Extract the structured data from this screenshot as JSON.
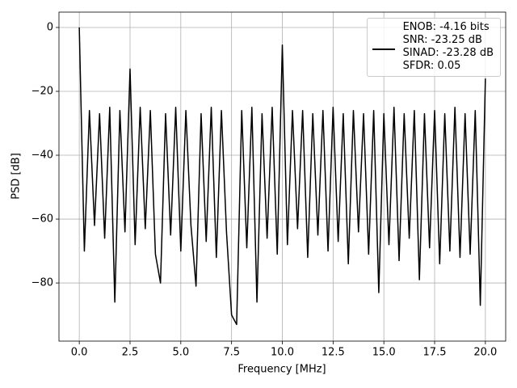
{
  "chart_data": {
    "type": "line",
    "x_label": "Frequency [MHz]",
    "y_label": "PSD [dB]",
    "x": [
      0,
      0.25,
      0.5,
      0.75,
      1,
      1.25,
      1.5,
      1.75,
      2,
      2.25,
      2.5,
      2.75,
      3,
      3.25,
      3.5,
      3.75,
      4,
      4.25,
      4.5,
      4.75,
      5,
      5.25,
      5.5,
      5.75,
      6,
      6.25,
      6.5,
      6.75,
      7,
      7.25,
      7.5,
      7.75,
      8,
      8.25,
      8.5,
      8.75,
      9,
      9.25,
      9.5,
      9.75,
      10,
      10.25,
      10.5,
      10.75,
      11,
      11.25,
      11.5,
      11.75,
      12,
      12.25,
      12.5,
      12.75,
      13,
      13.25,
      13.5,
      13.75,
      14,
      14.25,
      14.5,
      14.75,
      15,
      15.25,
      15.5,
      15.75,
      16,
      16.25,
      16.5,
      16.75,
      17,
      17.25,
      17.5,
      17.75,
      18,
      18.25,
      18.5,
      18.75,
      19,
      19.25,
      19.5,
      19.75,
      20
    ],
    "series": [
      {
        "name": "ENOB: -4.16 bits\nSNR: -23.25 dB\nSINAD: -23.28 dB\nSFDR: 0.05",
        "color": "#000000",
        "values": [
          0,
          -70,
          -26,
          -62,
          -27,
          -66,
          -25,
          -86,
          -26,
          -64,
          -13,
          -68,
          -25,
          -63,
          -26,
          -71,
          -80,
          -27,
          -65,
          -25,
          -70,
          -26,
          -62,
          -81,
          -27,
          -67,
          -25,
          -72,
          -26,
          -64,
          -90,
          -93,
          -26,
          -69,
          -25,
          -86,
          -27,
          -66,
          -25,
          -71,
          -5.5,
          -68,
          -26,
          -63,
          -26,
          -72,
          -27,
          -65,
          -26,
          -70,
          -25,
          -67,
          -27,
          -74,
          -26,
          -64,
          -27,
          -71,
          -26,
          -83,
          -27,
          -68,
          -25,
          -73,
          -27,
          -66,
          -26,
          -79,
          -27,
          -69,
          -26,
          -74,
          -27,
          -70,
          -25,
          -72,
          -27,
          -71,
          -26,
          -87,
          -16
        ]
      }
    ],
    "xlim": [
      -1,
      21
    ],
    "ylim": [
      -98.2,
      4.8
    ],
    "xticks": [
      {
        "value": 0,
        "label": "0.0"
      },
      2.5,
      {
        "value": 5,
        "label": "5.0"
      },
      7.5,
      {
        "value": 10,
        "label": "10.0"
      },
      12.5,
      {
        "value": 15,
        "label": "15.0"
      },
      17.5,
      {
        "value": 20,
        "label": "20.0"
      }
    ],
    "yticks": [
      {
        "value": 0,
        "label": "0"
      },
      {
        "value": -20,
        "label": "−20"
      },
      {
        "value": -40,
        "label": "−40"
      },
      {
        "value": -60,
        "label": "−60"
      },
      {
        "value": -80,
        "label": "−80"
      }
    ],
    "grid": true,
    "legend": "upper right"
  }
}
